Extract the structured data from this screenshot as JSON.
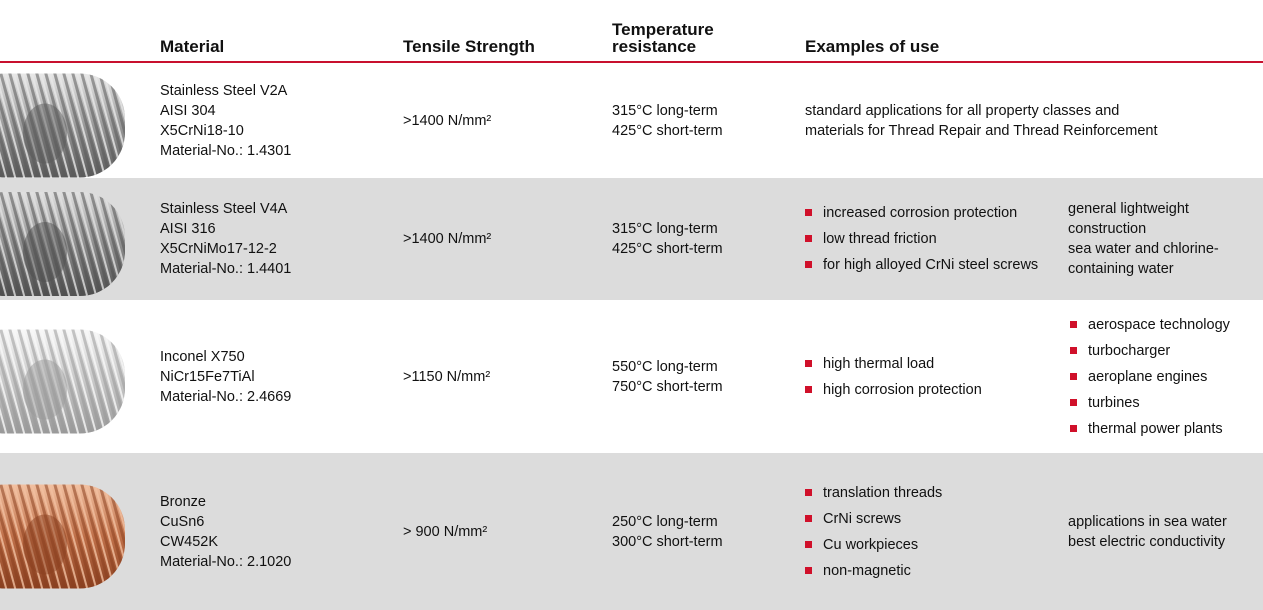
{
  "header": {
    "columns": [
      "Material",
      "Tensile Strength",
      "Temperature resistance",
      "Examples of use"
    ]
  },
  "rows": [
    {
      "material": [
        "Stainless Steel V2A",
        "AISI 304",
        "X5CrNi18-10",
        "Material-No.: 1.4301"
      ],
      "tensile": ">1400 N/mm²",
      "temperature": [
        "315°C long-term",
        "425°C short-term"
      ],
      "examples": [
        "standard applications for all property classes and",
        "materials for Thread Repair and Thread Reinforcement"
      ]
    },
    {
      "material": [
        "Stainless Steel V4A",
        "AISI 316",
        "X5CrNiMo17-12-2",
        "Material-No.: 1.4401"
      ],
      "tensile": ">1400 N/mm²",
      "temperature": [
        "315°C long-term",
        "425°C short-term"
      ],
      "uses": [
        "increased corrosion protection",
        "low thread friction",
        "for high alloyed CrNi steel screws"
      ],
      "notes": [
        "general lightweight construction",
        "sea water and chlorine-containing water"
      ]
    },
    {
      "material": [
        "Inconel X750",
        "NiCr15Fe7TiAl",
        "Material-No.: 2.4669"
      ],
      "tensile": ">1150 N/mm²",
      "temperature": [
        "550°C long-term",
        "750°C short-term"
      ],
      "uses": [
        "high thermal load",
        "high corrosion protection"
      ],
      "uses2": [
        "aerospace technology",
        "turbocharger",
        "aeroplane engines",
        "turbines",
        "thermal power plants"
      ]
    },
    {
      "material": [
        "Bronze",
        "CuSn6",
        "CW452K",
        "Material-No.: 2.1020"
      ],
      "tensile": "> 900 N/mm²",
      "temperature": [
        "250°C long-term",
        "300°C short-term"
      ],
      "uses": [
        "translation threads",
        "CrNi screws",
        "Cu workpieces",
        "non-magnetic"
      ],
      "notes": [
        "applications in sea water",
        "best electric conductivity"
      ]
    }
  ]
}
